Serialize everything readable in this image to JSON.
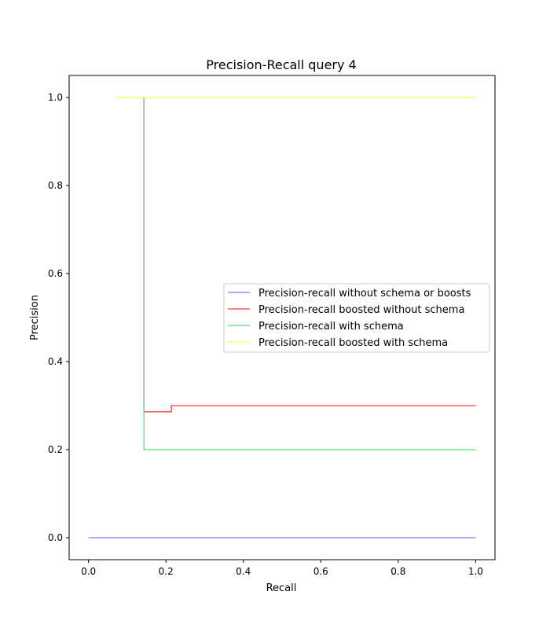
{
  "chart_data": {
    "type": "line",
    "title": "Precision-Recall query 4",
    "xlabel": "Recall",
    "ylabel": "Precision",
    "xlim": [
      -0.05,
      1.05
    ],
    "ylim": [
      -0.05,
      1.05
    ],
    "xticks": [
      "0.0",
      "0.2",
      "0.4",
      "0.6",
      "0.8",
      "1.0"
    ],
    "yticks": [
      "0.0",
      "0.2",
      "0.4",
      "0.6",
      "0.8",
      "1.0"
    ],
    "grid": false,
    "legend_position": "center-right",
    "series": [
      {
        "name": "Precision-recall without schema or boosts",
        "color": "#7f3fff",
        "x": [
          0.0,
          1.0
        ],
        "y": [
          0.0,
          0.0
        ]
      },
      {
        "name": "Precision-recall boosted without schema",
        "color": "#ff0000",
        "x": [
          0.071,
          0.143,
          0.143,
          0.214,
          0.214,
          1.0
        ],
        "y": [
          1.0,
          1.0,
          0.286,
          0.286,
          0.3,
          0.3
        ]
      },
      {
        "name": "Precision-recall with schema",
        "color": "#22dd55",
        "x": [
          0.071,
          0.143,
          0.143,
          1.0
        ],
        "y": [
          1.0,
          1.0,
          0.2,
          0.2
        ]
      },
      {
        "name": "Precision-recall boosted with schema",
        "color": "#ffff22",
        "x": [
          0.071,
          1.0
        ],
        "y": [
          1.0,
          1.0
        ]
      }
    ]
  }
}
